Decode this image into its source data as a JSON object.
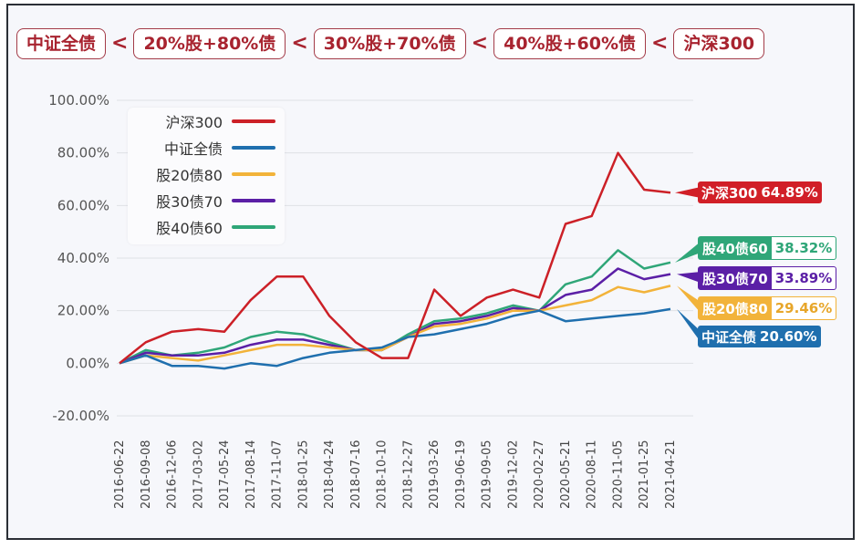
{
  "nav": {
    "tags": [
      "中证全债",
      "20%股+80%债",
      "30%股+70%债",
      "40%股+60%债",
      "沪深300"
    ],
    "separator": "<"
  },
  "legend": {
    "items": [
      {
        "label": "沪深300",
        "color": "#cc2027"
      },
      {
        "label": "中证全债",
        "color": "#1f6fae"
      },
      {
        "label": "股20债80",
        "color": "#f2b33a"
      },
      {
        "label": "股30债70",
        "color": "#5b1fa6"
      },
      {
        "label": "股40债60",
        "color": "#2fa678"
      }
    ]
  },
  "end_labels": [
    {
      "name": "沪深300",
      "value": "64.89%",
      "color": "#d11f27"
    },
    {
      "name": "股40债60",
      "value": "38.32%",
      "color": "#2fa678"
    },
    {
      "name": "股30债70",
      "value": "33.89%",
      "color": "#5b1fa6"
    },
    {
      "name": "股20债80",
      "value": "29.46%",
      "color": "#f2b33a"
    },
    {
      "name": "中证全债",
      "value": "20.60%",
      "color": "#1f6fae"
    }
  ],
  "chart_data": {
    "type": "line",
    "title": "",
    "xlabel": "",
    "ylabel": "",
    "ylim": [
      -20,
      100
    ],
    "yticks": [
      "100.00%",
      "80.00%",
      "60.00%",
      "40.00%",
      "20.00%",
      "0.00%",
      "-20.00%"
    ],
    "grid": true,
    "legend_position": "upper-left",
    "categories": [
      "2016-06-22",
      "2016-09-08",
      "2016-12-06",
      "2017-03-02",
      "2017-05-24",
      "2017-08-14",
      "2017-11-07",
      "2018-01-25",
      "2018-04-24",
      "2018-07-16",
      "2018-10-10",
      "2018-12-27",
      "2019-03-26",
      "2019-06-19",
      "2019-09-05",
      "2019-12-02",
      "2020-02-27",
      "2020-05-21",
      "2020-08-11",
      "2020-11-05",
      "2021-01-25",
      "2021-04-21"
    ],
    "series": [
      {
        "name": "沪深300",
        "values": [
          0,
          8,
          12,
          13,
          12,
          24,
          33,
          33,
          18,
          8,
          2,
          2,
          28,
          18,
          25,
          28,
          25,
          53,
          56,
          80,
          66,
          64.89
        ]
      },
      {
        "name": "中证全债",
        "values": [
          0,
          3,
          -1,
          -1,
          -2,
          0,
          -1,
          2,
          4,
          5,
          6,
          10,
          11,
          13,
          15,
          18,
          20,
          16,
          17,
          18,
          19,
          20.6
        ]
      },
      {
        "name": "股20债80",
        "values": [
          0,
          3,
          2,
          1,
          3,
          5,
          7,
          7,
          6,
          5,
          5,
          10,
          14,
          15,
          17,
          20,
          20,
          22,
          24,
          29,
          27,
          29.46
        ]
      },
      {
        "name": "股30债70",
        "values": [
          0,
          4,
          3,
          3,
          4,
          7,
          9,
          9,
          7,
          5,
          5,
          10,
          15,
          16,
          18,
          21,
          20,
          26,
          28,
          36,
          32,
          33.89
        ]
      },
      {
        "name": "股40债60",
        "values": [
          0,
          5,
          3,
          4,
          6,
          10,
          12,
          11,
          8,
          5,
          5,
          11,
          16,
          17,
          19,
          22,
          20,
          30,
          33,
          43,
          36,
          38.32
        ]
      }
    ],
    "end_values": {
      "沪深300": "64.89%",
      "股40债60": "38.32%",
      "股30债70": "33.89%",
      "股20债80": "29.46%",
      "中证全债": "20.60%"
    }
  }
}
